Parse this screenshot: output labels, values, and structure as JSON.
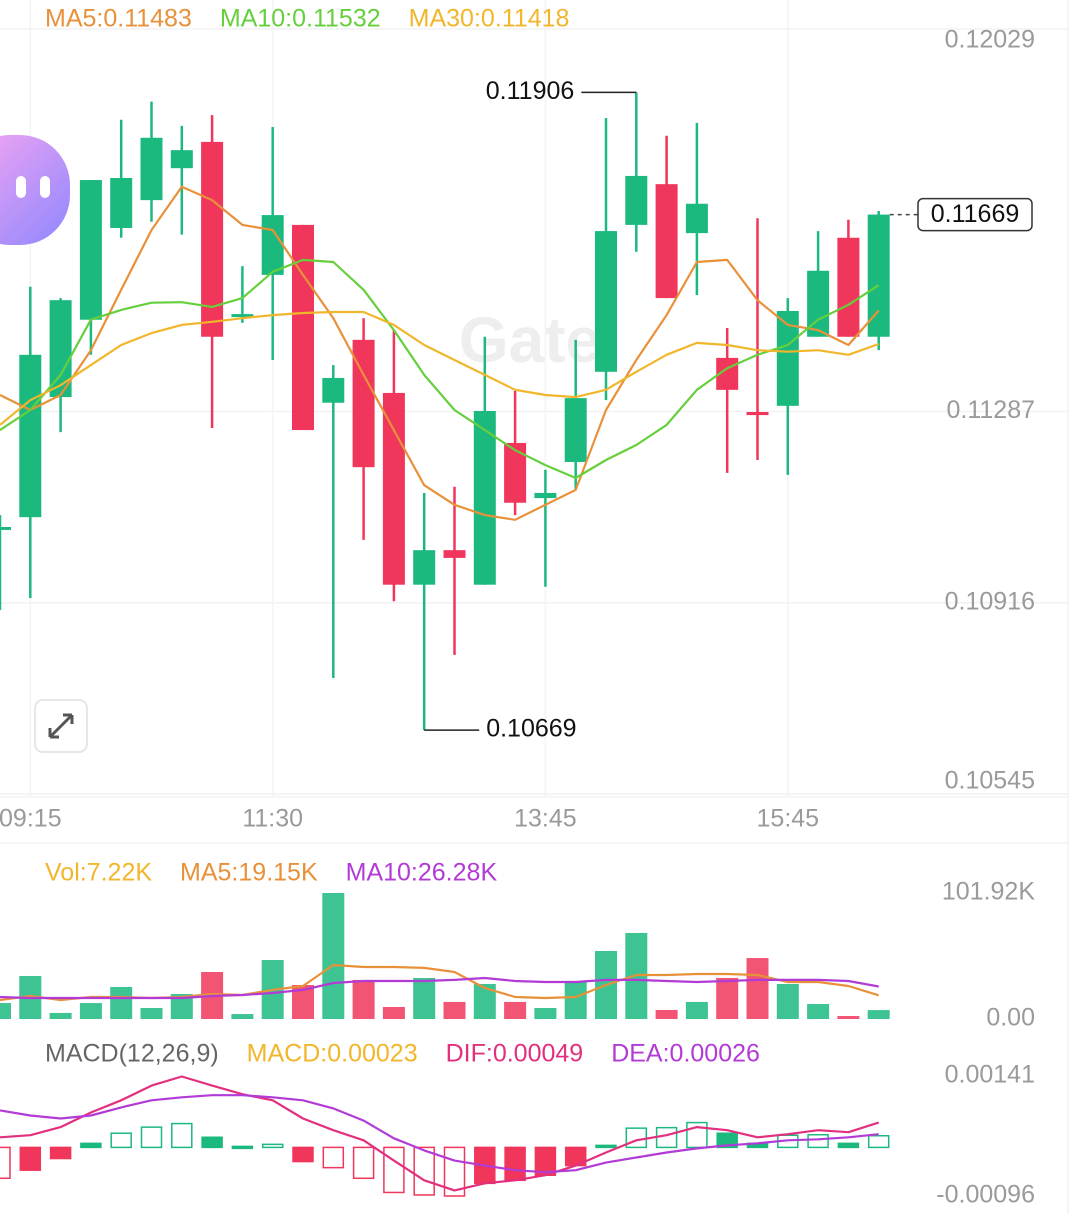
{
  "chart_data": [
    {
      "type": "candlestick",
      "categories": [
        null,
        "09:15",
        null,
        null,
        null,
        null,
        null,
        null,
        null,
        "11:30",
        null,
        null,
        null,
        null,
        null,
        null,
        null,
        null,
        "13:45",
        null,
        null,
        null,
        null,
        null,
        null,
        null,
        "15:45",
        null,
        null,
        null
      ],
      "open": [
        0.11063,
        0.11082,
        0.11315,
        0.11465,
        0.11643,
        0.11697,
        0.11759,
        0.1181,
        0.11476,
        0.11552,
        0.11649,
        0.11304,
        0.11426,
        0.11323,
        0.10951,
        0.11018,
        0.10951,
        0.11226,
        0.11119,
        0.11189,
        0.11364,
        0.11649,
        0.11728,
        0.11633,
        0.11391,
        0.11286,
        0.11298,
        0.11432,
        0.11624,
        0.11432
      ],
      "high": [
        0.11086,
        0.11529,
        0.11507,
        0.11736,
        0.11853,
        0.11888,
        0.11841,
        0.11862,
        0.11569,
        0.11839,
        0.11649,
        0.11377,
        0.11468,
        0.11445,
        0.11129,
        0.11141,
        0.11432,
        0.11327,
        0.11174,
        0.11426,
        0.11856,
        0.11906,
        0.11822,
        0.11847,
        0.11449,
        0.11662,
        0.11507,
        0.11637,
        0.11659,
        0.11676
      ],
      "low": [
        0.10902,
        0.10925,
        0.11247,
        0.11397,
        0.11624,
        0.11655,
        0.1163,
        0.11255,
        0.11459,
        0.11387,
        0.11251,
        0.1077,
        0.11038,
        0.10919,
        0.10669,
        0.10815,
        0.10951,
        0.11086,
        0.10947,
        0.11135,
        0.11309,
        0.11597,
        0.11507,
        0.11513,
        0.11168,
        0.11193,
        0.11164,
        0.11432,
        0.11432,
        0.11406
      ],
      "close": [
        0.11063,
        0.11397,
        0.11503,
        0.11736,
        0.1174,
        0.11818,
        0.11794,
        0.11432,
        0.11476,
        0.11668,
        0.11251,
        0.11352,
        0.11179,
        0.10951,
        0.11018,
        0.11003,
        0.11288,
        0.1111,
        0.11129,
        0.11313,
        0.11637,
        0.11744,
        0.11507,
        0.1169,
        0.11329,
        0.1128,
        0.11482,
        0.1156,
        0.11432,
        0.11669
      ],
      "up_color": "#1cb97f",
      "down_color": "#f0365b",
      "series": [
        {
          "name": "MA5:0.11483",
          "color": "#e8913a",
          "values": [
            0.11319,
            0.1129,
            0.11319,
            0.11406,
            0.11523,
            0.11639,
            0.11723,
            0.11697,
            0.11649,
            0.11639,
            0.11552,
            0.11468,
            0.11358,
            0.11251,
            0.11144,
            0.11106,
            0.11086,
            0.11077,
            0.11106,
            0.11135,
            0.1129,
            0.11387,
            0.11474,
            0.11577,
            0.11581,
            0.11503,
            0.11455,
            0.11445,
            0.11416,
            0.11483
          ]
        },
        {
          "name": "MA10:0.11532",
          "color": "#66cf3c",
          "values": [
            0.11251,
            0.1129,
            0.11358,
            0.11465,
            0.11484,
            0.11498,
            0.11499,
            0.1149,
            0.11507,
            0.11558,
            0.11581,
            0.11577,
            0.11523,
            0.11445,
            0.11358,
            0.1129,
            0.11251,
            0.11212,
            0.11183,
            0.11158,
            0.11193,
            0.11222,
            0.11261,
            0.11329,
            0.11371,
            0.11397,
            0.11416,
            0.11465,
            0.11494,
            0.11532
          ]
        },
        {
          "name": "MA30:0.11418",
          "color": "#f1b62b",
          "values": [
            0.11261,
            0.11309,
            0.11338,
            0.11377,
            0.11416,
            0.11439,
            0.11455,
            0.11461,
            0.11468,
            0.11474,
            0.11478,
            0.1148,
            0.1148,
            0.11455,
            0.11416,
            0.11387,
            0.11358,
            0.11329,
            0.11319,
            0.11315,
            0.11329,
            0.11364,
            0.11397,
            0.1142,
            0.11416,
            0.11406,
            0.11403,
            0.11406,
            0.11397,
            0.11418
          ]
        }
      ],
      "ylim": [
        0.10545,
        0.12029
      ],
      "yticks": [
        0.12029,
        0.11287,
        0.10916,
        0.10545
      ],
      "grid": true
    },
    {
      "type": "bar",
      "name": "Vol:7.22K",
      "color": "#f1b62b",
      "values": [
        12900,
        34800,
        4900,
        12900,
        25900,
        8900,
        20200,
        38000,
        4000,
        47700,
        27500,
        101920,
        31600,
        9700,
        33200,
        13800,
        28300,
        13800,
        8900,
        29900,
        55000,
        69600,
        7300,
        13800,
        33200,
        49300,
        28300,
        12100,
        2400,
        7220
      ],
      "series": [
        {
          "name": "MA5:19.15K",
          "color": "#e8913a",
          "values": [
            15400,
            18600,
            15400,
            17800,
            17800,
            17000,
            17800,
            20200,
            19400,
            23500,
            26700,
            43700,
            42100,
            42100,
            41300,
            38000,
            25100,
            17800,
            17000,
            17800,
            27500,
            35600,
            35600,
            36400,
            36400,
            35600,
            29900,
            29900,
            26700,
            19150
          ]
        },
        {
          "name": "MA10:26.28K",
          "color": "#b23bd6",
          "values": [
            17800,
            17000,
            17000,
            17000,
            17000,
            17000,
            17000,
            18600,
            19400,
            21000,
            23500,
            29100,
            30700,
            30700,
            30700,
            31600,
            33200,
            30700,
            29900,
            29900,
            31600,
            31600,
            30700,
            29900,
            30700,
            31600,
            31600,
            31600,
            30700,
            26280
          ]
        }
      ],
      "ylim": [
        0,
        101920
      ],
      "yticks": [
        {
          "value": 101920,
          "label": "101.92K"
        },
        {
          "value": 0,
          "label": "0.00"
        }
      ]
    },
    {
      "type": "macd",
      "title": "MACD(12,26,9)",
      "name": "MACD:0.00023",
      "color": "#f1b62b",
      "values": [
        -0.00061,
        -0.00045,
        -0.00022,
        8e-05,
        0.00028,
        0.0004,
        0.00047,
        0.0002,
        2e-05,
        6e-05,
        -0.00028,
        -0.0004,
        -0.00061,
        -0.00089,
        -0.00094,
        -0.00096,
        -0.00071,
        -0.00065,
        -0.00055,
        -0.00036,
        4e-05,
        0.00038,
        0.00039,
        0.00049,
        0.00028,
        8e-05,
        0.00024,
        0.00025,
        8e-05,
        0.00023
      ],
      "series": [
        {
          "name": "DIF:0.00049",
          "color": "#e2307f",
          "values": [
            0.0002,
            0.00024,
            0.0004,
            0.00069,
            0.00093,
            0.00122,
            0.0014,
            0.00122,
            0.00105,
            0.00093,
            0.00057,
            0.00034,
            0.00014,
            -0.00026,
            -0.00065,
            -0.00085,
            -0.00071,
            -0.00065,
            -0.00055,
            -0.00036,
            -0.0001,
            0.00014,
            0.00024,
            0.0004,
            0.00034,
            0.0002,
            0.00026,
            0.00034,
            0.0003,
            0.00049
          ]
        },
        {
          "name": "DEA:0.00026",
          "color": "#b23bd6",
          "values": [
            0.00073,
            0.00063,
            0.00057,
            0.00063,
            0.00079,
            0.00093,
            0.00099,
            0.00103,
            0.00103,
            0.00099,
            0.00093,
            0.00077,
            0.00053,
            0.00018,
            -6e-05,
            -0.00026,
            -0.00036,
            -0.00045,
            -0.00049,
            -0.00045,
            -0.0003,
            -0.0002,
            -0.0001,
            -2e-05,
            4e-05,
            8e-05,
            0.00014,
            0.00016,
            0.0002,
            0.00026
          ]
        }
      ],
      "ylim": [
        -0.00096,
        0.00141
      ],
      "yticks": [
        0.00141,
        -0.00096
      ]
    }
  ],
  "watermark": "Gate"
}
